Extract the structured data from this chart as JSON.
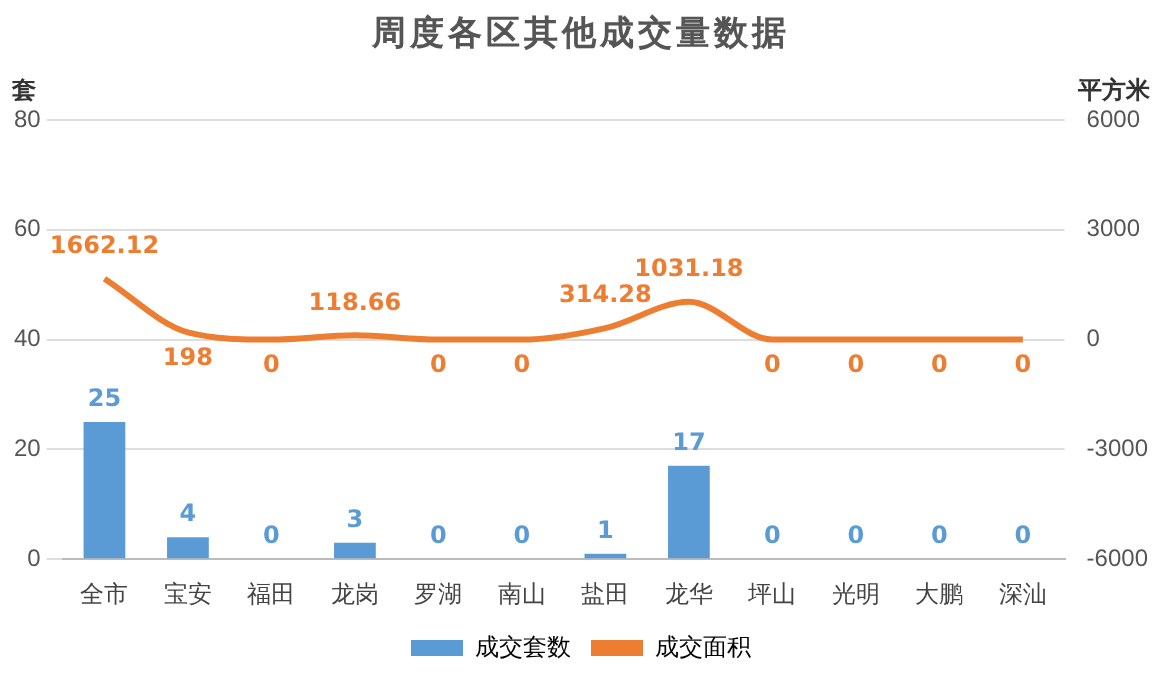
{
  "chart_data": {
    "type": "bar",
    "title": "周度各区其他成交量数据",
    "ylabel": "套",
    "y2label": "平方米",
    "categories": [
      "全市",
      "宝安",
      "福田",
      "龙岗",
      "罗湖",
      "南山",
      "盐田",
      "龙华",
      "坪山",
      "光明",
      "大鹏",
      "深汕"
    ],
    "series": [
      {
        "name": "成交套数",
        "color": "#5b9bd5",
        "values": [
          25,
          4,
          0,
          3,
          0,
          0,
          1,
          17,
          0,
          0,
          0,
          0
        ]
      },
      {
        "name": "成交面积",
        "type": "line",
        "axis": "y2",
        "color": "#ed7d31",
        "values": [
          1662.12,
          198,
          0,
          118.66,
          0,
          0,
          314.28,
          1031.18,
          0,
          0,
          0,
          0
        ]
      }
    ],
    "ylim": [
      0,
      80
    ],
    "yticks": [
      0,
      20,
      40,
      60,
      80
    ],
    "y2lim": [
      -6000,
      6000
    ],
    "y2ticks": [
      -6000,
      -3000,
      0,
      3000,
      6000
    ],
    "grid": "y",
    "legend": "bottom",
    "data_labels": true,
    "marker": "none",
    "line_style": "solid"
  }
}
